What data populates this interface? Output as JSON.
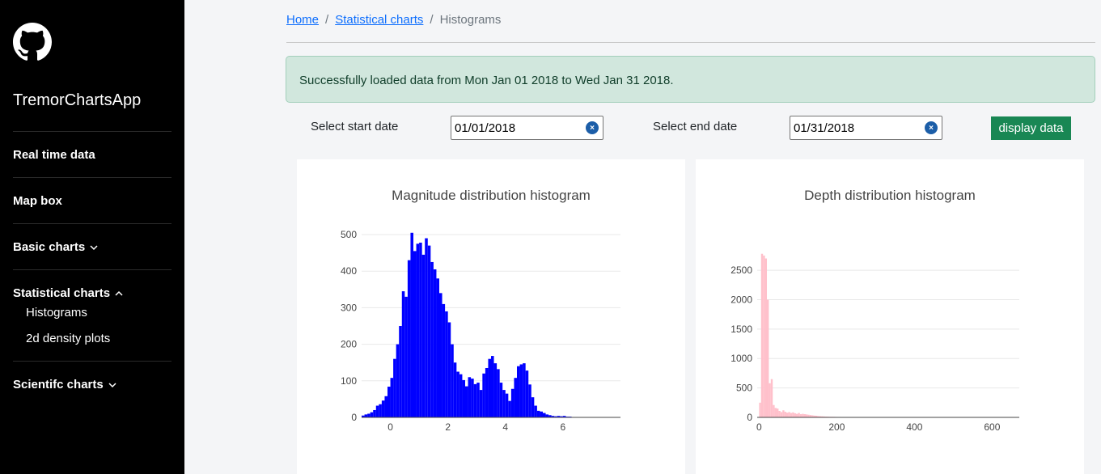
{
  "sidebar": {
    "app_name": "TremorChartsApp",
    "items": [
      {
        "label": "Real time data"
      },
      {
        "label": "Map box"
      },
      {
        "label": "Basic charts"
      },
      {
        "label": "Statistical charts"
      },
      {
        "label": "Scientifc charts"
      }
    ],
    "sub_items": [
      {
        "label": "Histograms"
      },
      {
        "label": "2d density plots"
      }
    ]
  },
  "breadcrumb": {
    "home": "Home",
    "statistical": "Statistical charts",
    "current": "Histograms",
    "separator": "/"
  },
  "alert": {
    "message": "Successfully loaded data from Mon Jan 01 2018 to Wed Jan 31 2018."
  },
  "controls": {
    "start_label": "Select start date",
    "start_value": "01/01/2018",
    "end_label": "Select end date",
    "end_value": "01/31/2018",
    "display_button": "display data",
    "clear_glyph": "×"
  },
  "colors": {
    "success": "#198754",
    "alert_bg": "#d1e7dd",
    "magnitude_bar": "#0000ff",
    "depth_bar": "#ffc0cb",
    "link": "#0d6efd"
  },
  "chart_data": [
    {
      "type": "bar",
      "title": "Magnitude distribution histogram",
      "xlabel": "",
      "ylabel": "",
      "xlim": [
        -1,
        8
      ],
      "ylim": [
        0,
        520
      ],
      "yticks": [
        0,
        100,
        200,
        300,
        400,
        500
      ],
      "xticks": [
        0,
        2,
        4,
        6
      ],
      "bin_start": -1.0,
      "bin_width": 0.1,
      "values": [
        5,
        8,
        10,
        14,
        20,
        32,
        36,
        46,
        58,
        84,
        108,
        160,
        200,
        250,
        345,
        330,
        430,
        505,
        455,
        475,
        478,
        445,
        490,
        470,
        425,
        405,
        380,
        340,
        310,
        290,
        260,
        200,
        150,
        125,
        118,
        102,
        85,
        110,
        106,
        91,
        95,
        75,
        120,
        135,
        160,
        168,
        148,
        132,
        95,
        75,
        65,
        45,
        78,
        108,
        140,
        145,
        148,
        128,
        90,
        55,
        32,
        18,
        16,
        12,
        8,
        6,
        4,
        3,
        4,
        3,
        4,
        2,
        2,
        1,
        1,
        1,
        1,
        1,
        1,
        0,
        1,
        0,
        0,
        0,
        0,
        0,
        0,
        0,
        0
      ],
      "bar_color": "#0000ff"
    },
    {
      "type": "bar",
      "title": "Depth distribution histogram",
      "xlabel": "",
      "ylabel": "",
      "xlim": [
        -5,
        670
      ],
      "ylim": [
        0,
        2900
      ],
      "yticks": [
        0,
        500,
        1000,
        1500,
        2000,
        2500
      ],
      "xticks": [
        0,
        200,
        400,
        600
      ],
      "bin_start": 0,
      "bin_width": 5,
      "values": [
        250,
        2780,
        2750,
        2700,
        2000,
        580,
        650,
        210,
        160,
        150,
        110,
        90,
        120,
        95,
        80,
        90,
        75,
        85,
        70,
        60,
        75,
        55,
        60,
        55,
        50,
        45,
        40,
        35,
        30,
        28,
        22,
        20,
        18,
        15,
        13,
        12,
        10,
        10,
        9,
        8,
        7,
        7,
        6,
        6,
        5,
        5,
        5,
        4,
        4,
        4,
        4,
        3,
        3,
        3,
        3,
        3,
        3,
        3,
        3,
        3,
        3,
        3,
        3,
        3,
        3,
        3,
        3,
        3,
        3,
        3,
        3,
        3,
        3,
        3,
        3,
        3,
        3,
        3,
        3,
        3,
        3,
        3,
        3,
        3,
        3,
        3,
        3,
        3,
        3,
        3,
        3,
        3,
        3,
        3,
        3,
        3,
        3,
        3,
        3,
        3,
        3,
        3,
        3,
        3,
        3,
        3,
        3,
        3,
        3,
        3,
        3,
        3,
        3,
        3,
        3,
        3,
        3,
        3,
        3,
        3,
        3,
        3,
        3,
        3,
        3,
        3,
        3,
        3,
        3,
        3,
        3,
        3
      ],
      "bar_color": "#ffc0cb"
    }
  ]
}
